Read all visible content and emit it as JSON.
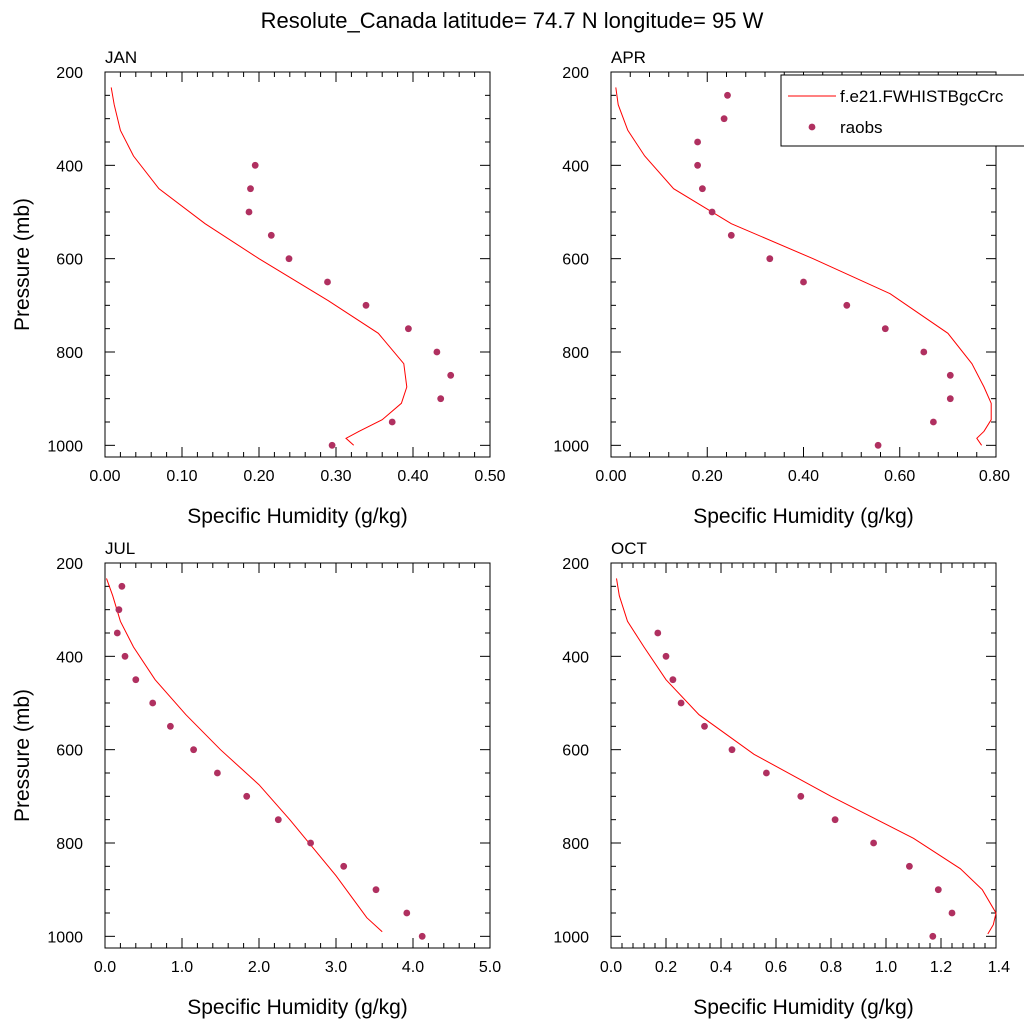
{
  "title": "Resolute_Canada  latitude= 74.7 N longitude= 95 W",
  "colors": {
    "model": "#ff0000",
    "obs": "#b03060",
    "axis": "#000000"
  },
  "legend": {
    "items": [
      {
        "label": "f.e21.FWHISTBgcCrc",
        "kind": "line",
        "icon": "red-line-icon"
      },
      {
        "label": "raobs",
        "kind": "marker",
        "icon": "dot-marker-icon"
      }
    ]
  },
  "chart_data": [
    {
      "type": "line",
      "title": "JAN",
      "xlabel": "Specific Humidity (g/kg)",
      "ylabel": "Pressure (mb)",
      "xlim": [
        0,
        0.5
      ],
      "ylim": [
        200,
        1025
      ],
      "xticks": [
        0,
        0.1,
        0.2,
        0.3,
        0.4,
        0.5
      ],
      "xtick_labels": [
        "0.00",
        "0.10",
        "0.20",
        "0.30",
        "0.40",
        "0.50"
      ],
      "yticks": [
        200,
        400,
        600,
        800,
        1000
      ],
      "ytick_labels": [
        "200",
        "400",
        "600",
        "800",
        "1000"
      ],
      "series": [
        {
          "name": "f.e21.FWHISTBgcCrc",
          "kind": "line",
          "x": [
            0.008,
            0.012,
            0.02,
            0.037,
            0.07,
            0.13,
            0.2,
            0.29,
            0.355,
            0.388,
            0.392,
            0.385,
            0.36,
            0.33,
            0.313,
            0.323
          ],
          "y": [
            233,
            270,
            325,
            380,
            450,
            525,
            600,
            690,
            760,
            825,
            875,
            910,
            945,
            970,
            985,
            1000
          ]
        },
        {
          "name": "raobs",
          "kind": "scatter",
          "x": [
            0.195,
            0.189,
            0.187,
            0.216,
            0.239,
            0.289,
            0.339,
            0.394,
            0.431,
            0.449,
            0.436,
            0.373,
            0.295
          ],
          "y": [
            400,
            450,
            500,
            550,
            600,
            650,
            700,
            750,
            800,
            850,
            900,
            950,
            1000
          ]
        }
      ]
    },
    {
      "type": "line",
      "title": "APR",
      "xlabel": "Specific Humidity (g/kg)",
      "ylabel": "",
      "xlim": [
        0,
        0.8
      ],
      "ylim": [
        200,
        1025
      ],
      "xticks": [
        0,
        0.2,
        0.4,
        0.6,
        0.8
      ],
      "xtick_labels": [
        "0.00",
        "0.20",
        "0.40",
        "0.60",
        "0.80"
      ],
      "yticks": [
        200,
        400,
        600,
        800,
        1000
      ],
      "ytick_labels": [
        "200",
        "400",
        "600",
        "800",
        "1000"
      ],
      "series": [
        {
          "name": "f.e21.FWHISTBgcCrc",
          "kind": "line",
          "x": [
            0.01,
            0.015,
            0.035,
            0.07,
            0.13,
            0.25,
            0.42,
            0.58,
            0.7,
            0.75,
            0.775,
            0.79,
            0.79,
            0.775,
            0.76,
            0.77
          ],
          "y": [
            233,
            270,
            325,
            380,
            450,
            525,
            600,
            675,
            760,
            825,
            875,
            910,
            945,
            970,
            985,
            1000
          ]
        },
        {
          "name": "raobs",
          "kind": "scatter",
          "x": [
            0.242,
            0.235,
            0.18,
            0.18,
            0.19,
            0.21,
            0.25,
            0.33,
            0.4,
            0.49,
            0.57,
            0.65,
            0.705,
            0.705,
            0.67,
            0.555
          ],
          "y": [
            250,
            300,
            350,
            400,
            450,
            500,
            550,
            600,
            650,
            700,
            750,
            800,
            850,
            900,
            950,
            1000
          ]
        }
      ]
    },
    {
      "type": "line",
      "title": "JUL",
      "xlabel": "Specific Humidity (g/kg)",
      "ylabel": "Pressure (mb)",
      "xlim": [
        0,
        5
      ],
      "ylim": [
        200,
        1025
      ],
      "xticks": [
        0,
        1,
        2,
        3,
        4,
        5
      ],
      "xtick_labels": [
        "0.0",
        "1.0",
        "2.0",
        "3.0",
        "4.0",
        "5.0"
      ],
      "yticks": [
        200,
        400,
        600,
        800,
        1000
      ],
      "ytick_labels": [
        "200",
        "400",
        "600",
        "800",
        "1000"
      ],
      "series": [
        {
          "name": "f.e21.FWHISTBgcCrc",
          "kind": "line",
          "x": [
            0.02,
            0.1,
            0.2,
            0.37,
            0.65,
            1.05,
            1.5,
            2.0,
            2.4,
            2.7,
            3.0,
            3.2,
            3.4,
            3.6
          ],
          "y": [
            233,
            270,
            325,
            380,
            450,
            525,
            600,
            675,
            750,
            810,
            870,
            915,
            960,
            990
          ]
        },
        {
          "name": "raobs",
          "kind": "scatter",
          "x": [
            0.22,
            0.18,
            0.16,
            0.26,
            0.4,
            0.62,
            0.85,
            1.15,
            1.46,
            1.84,
            2.25,
            2.67,
            3.1,
            3.52,
            3.92,
            4.12
          ],
          "y": [
            250,
            300,
            350,
            400,
            450,
            500,
            550,
            600,
            650,
            700,
            750,
            800,
            850,
            900,
            950,
            1000
          ]
        }
      ]
    },
    {
      "type": "line",
      "title": "OCT",
      "xlabel": "Specific Humidity (g/kg)",
      "ylabel": "",
      "xlim": [
        0,
        1.4
      ],
      "ylim": [
        200,
        1025
      ],
      "xticks": [
        0,
        0.2,
        0.4,
        0.6,
        0.8,
        1.0,
        1.2,
        1.4
      ],
      "xtick_labels": [
        "0.0",
        "0.2",
        "0.4",
        "0.6",
        "0.8",
        "1.0",
        "1.2",
        "1.4"
      ],
      "yticks": [
        200,
        400,
        600,
        800,
        1000
      ],
      "ytick_labels": [
        "200",
        "400",
        "600",
        "800",
        "1000"
      ],
      "series": [
        {
          "name": "f.e21.FWHISTBgcCrc",
          "kind": "line",
          "x": [
            0.02,
            0.03,
            0.06,
            0.12,
            0.2,
            0.32,
            0.52,
            0.8,
            1.1,
            1.27,
            1.35,
            1.4,
            1.39,
            1.37
          ],
          "y": [
            233,
            270,
            325,
            380,
            450,
            525,
            610,
            700,
            790,
            855,
            900,
            950,
            975,
            995
          ]
        },
        {
          "name": "raobs",
          "kind": "scatter",
          "x": [
            0.17,
            0.2,
            0.225,
            0.255,
            0.34,
            0.44,
            0.565,
            0.69,
            0.815,
            0.955,
            1.085,
            1.19,
            1.24,
            1.17
          ],
          "y": [
            350,
            400,
            450,
            500,
            550,
            600,
            650,
            700,
            750,
            800,
            850,
            900,
            950,
            1000
          ]
        }
      ]
    }
  ]
}
